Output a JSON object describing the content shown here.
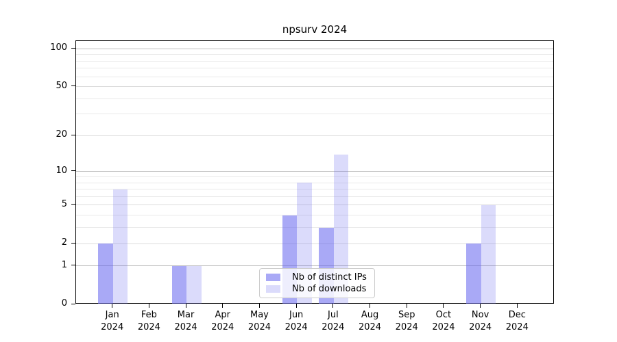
{
  "title": "npsurv 2024",
  "colors": {
    "bar_base_rgb": "99,99,239",
    "ips_alpha": 0.55,
    "downloads_alpha": 0.23,
    "grid_decade": "#bdbdbd",
    "grid_mid": "#dcdcdc",
    "grid_minor": "#e9e9e9",
    "axis": "#000000"
  },
  "chart_data": {
    "type": "bar",
    "title": "npsurv 2024",
    "scale": "log1p",
    "year": "2024",
    "categories": [
      "Jan",
      "Feb",
      "Mar",
      "Apr",
      "May",
      "Jun",
      "Jul",
      "Aug",
      "Sep",
      "Oct",
      "Nov",
      "Dec"
    ],
    "series": [
      {
        "name": "Nb of distinct IPs",
        "key": "ips",
        "values": [
          2,
          0,
          1,
          0,
          0,
          4,
          3,
          0,
          0,
          0,
          2,
          0
        ]
      },
      {
        "name": "Nb of downloads",
        "key": "downloads",
        "values": [
          7,
          0,
          1,
          0,
          0,
          8,
          14,
          0,
          0,
          0,
          5,
          0
        ]
      }
    ],
    "yticks": [
      0,
      1,
      2,
      5,
      10,
      20,
      50,
      100
    ],
    "decade_gridlines": [
      1,
      10,
      100
    ],
    "mid_gridlines": [
      2,
      5,
      20,
      50
    ],
    "minor_gridlines": [
      3,
      4,
      6,
      7,
      8,
      9,
      30,
      40,
      60,
      70,
      80,
      90
    ],
    "ylim": [
      0,
      115
    ],
    "grid": "on",
    "legend_position": "lower-center"
  }
}
